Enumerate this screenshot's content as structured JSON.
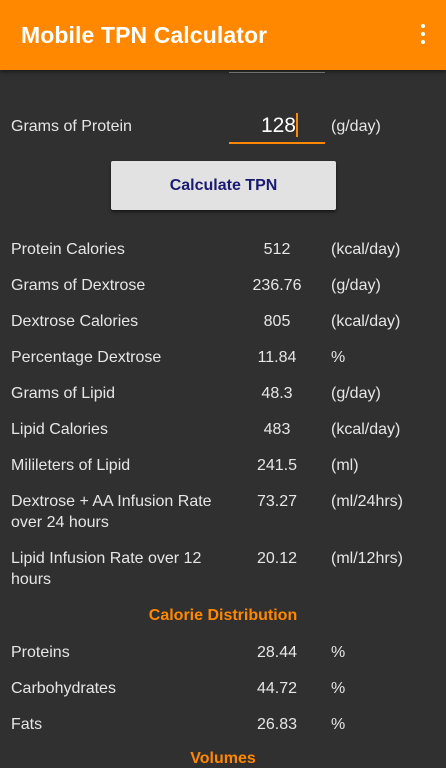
{
  "app": {
    "title": "Mobile TPN Calculator",
    "accent_color": "#ff8800",
    "menu_icon": "overflow-menu-icon"
  },
  "input": {
    "label": "Grams of Protein",
    "value": "128",
    "unit": "(g/day)"
  },
  "calculate_button": {
    "label": "Calculate TPN"
  },
  "results": [
    {
      "label": "Protein Calories",
      "value": "512",
      "unit": "(kcal/day)"
    },
    {
      "label": "Grams of Dextrose",
      "value": "236.76",
      "unit": "(g/day)"
    },
    {
      "label": "Dextrose Calories",
      "value": "805",
      "unit": "(kcal/day)"
    },
    {
      "label": "Percentage Dextrose",
      "value": "11.84",
      "unit": "%"
    },
    {
      "label": "Grams of Lipid",
      "value": "48.3",
      "unit": "(g/day)"
    },
    {
      "label": "Lipid Calories",
      "value": "483",
      "unit": "(kcal/day)"
    },
    {
      "label": "Milileters of Lipid",
      "value": "241.5",
      "unit": "(ml)"
    },
    {
      "label": "Dextrose + AA Infusion Rate over 24 hours",
      "value": "73.27",
      "unit": "(ml/24hrs)"
    },
    {
      "label": "Lipid Infusion Rate over 12 hours",
      "value": "20.12",
      "unit": "(ml/12hrs)"
    }
  ],
  "calorie_distribution": {
    "title": "Calorie Distribution",
    "rows": [
      {
        "label": "Proteins",
        "value": "28.44",
        "unit": "%"
      },
      {
        "label": "Carbohydrates",
        "value": "44.72",
        "unit": "%"
      },
      {
        "label": "Fats",
        "value": "26.83",
        "unit": "%"
      }
    ]
  },
  "volumes": {
    "title": "Volumes"
  }
}
